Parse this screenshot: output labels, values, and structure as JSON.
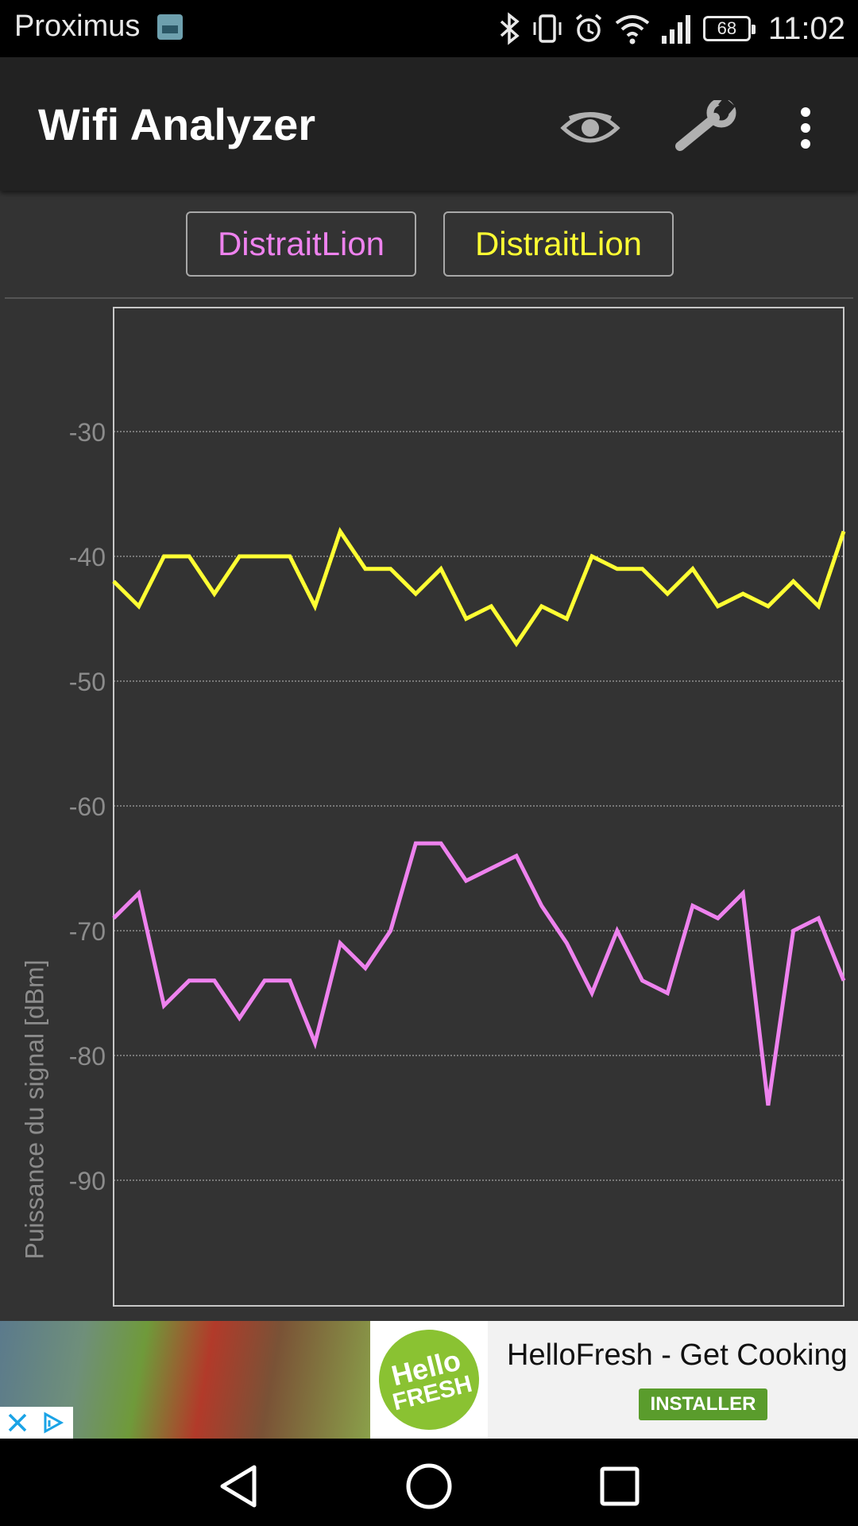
{
  "status_bar": {
    "carrier": "Proximus",
    "battery": "68",
    "time": "11:02",
    "icons": [
      "image-notification-icon",
      "bluetooth-icon",
      "vibrate-icon",
      "alarm-icon",
      "wifi-icon",
      "cell-signal-icon",
      "battery-icon"
    ]
  },
  "app_bar": {
    "title": "Wifi Analyzer",
    "actions": [
      "eye-icon",
      "wrench-icon",
      "overflow-menu-icon"
    ]
  },
  "legend": [
    {
      "label": "DistraitLion",
      "color": "#ee82ee"
    },
    {
      "label": "DistraitLion",
      "color": "#ffff33"
    }
  ],
  "chart_data": {
    "type": "line",
    "ylabel": "Puissance du signal [dBm]",
    "xlabel": "",
    "ylim": [
      -100,
      -20
    ],
    "yticks": [
      -30,
      -40,
      -50,
      -60,
      -70,
      -80,
      -90
    ],
    "grid": true,
    "x": [
      0,
      1,
      2,
      3,
      4,
      5,
      6,
      7,
      8,
      9,
      10,
      11,
      12,
      13,
      14,
      15,
      16,
      17,
      18,
      19,
      20,
      21,
      22,
      23,
      24,
      25,
      26,
      27,
      28,
      29
    ],
    "series": [
      {
        "name": "DistraitLion",
        "color": "#ee82ee",
        "values": [
          -69,
          -67,
          -76,
          -74,
          -74,
          -77,
          -74,
          -74,
          -79,
          -71,
          -73,
          -70,
          -63,
          -63,
          -66,
          -65,
          -64,
          -68,
          -71,
          -75,
          -70,
          -74,
          -75,
          -68,
          -69,
          -67,
          -84,
          -70,
          -69,
          -74
        ]
      },
      {
        "name": "DistraitLion",
        "color": "#ffff33",
        "values": [
          -42,
          -44,
          -40,
          -40,
          -43,
          -40,
          -40,
          -40,
          -44,
          -38,
          -41,
          -41,
          -43,
          -41,
          -45,
          -44,
          -47,
          -44,
          -45,
          -40,
          -41,
          -41,
          -43,
          -41,
          -44,
          -43,
          -44,
          -42,
          -44,
          -38
        ]
      }
    ]
  },
  "ad": {
    "headline": "HelloFresh - Get Cooking",
    "cta": "INSTALLER",
    "logo_line1": "Hello",
    "logo_line2": "FRESH",
    "icons": [
      "close-icon",
      "adchoices-icon"
    ]
  },
  "nav_bar": {
    "icons": [
      "back-icon",
      "home-icon",
      "recents-icon"
    ]
  }
}
